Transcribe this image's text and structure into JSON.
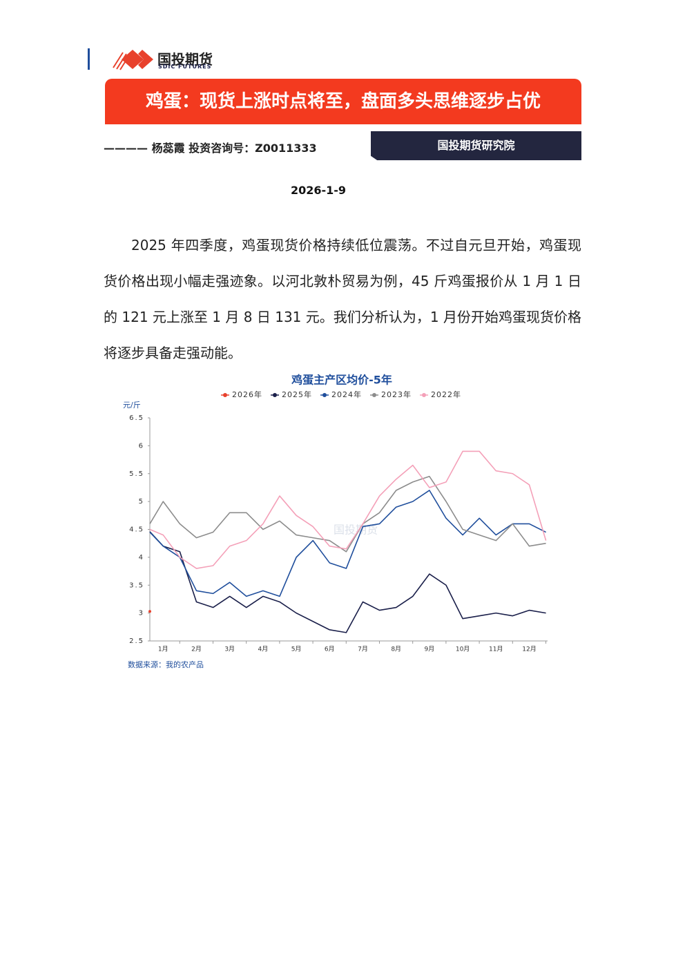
{
  "header": {
    "logo_cn": "国投期货",
    "logo_en": "SDIC FUTURES",
    "title": "鸡蛋：现货上涨时点将至，盘面多头思维逐步占优",
    "author_line": "———— 杨蕊霞 投资咨询号：Z0011333",
    "institute": "国投期货研究院",
    "date": "2026-1-9"
  },
  "body": {
    "paragraph": "2025 年四季度，鸡蛋现货价格持续低位震荡。不过自元旦开始，鸡蛋现货价格出现小幅走强迹象。以河北敦朴贸易为例，45 斤鸡蛋报价从 1 月 1 日的 121 元上涨至 1 月 8 日 131 元。我们分析认为，1 月份开始鸡蛋现货价格将逐步具备走强动能。"
  },
  "chart_data": {
    "type": "line",
    "title": "鸡蛋主产区均价-5年",
    "y_label": "元/斤",
    "source": "数据来源：我的农产品",
    "watermark": "国投期货",
    "x": [
      0.6,
      1,
      1.5,
      2,
      2.5,
      3,
      3.5,
      4,
      4.5,
      5,
      5.5,
      6,
      6.5,
      7,
      7.5,
      8,
      8.5,
      9,
      9.5,
      10,
      10.5,
      11,
      11.5,
      12,
      12.5
    ],
    "xlim": [
      0.6,
      12.55
    ],
    "xticks": [
      {
        "value": 1,
        "label": "1月"
      },
      {
        "value": 2,
        "label": "2月"
      },
      {
        "value": 3,
        "label": "3月"
      },
      {
        "value": 4,
        "label": "4月"
      },
      {
        "value": 5,
        "label": "5月"
      },
      {
        "value": 6,
        "label": "6月"
      },
      {
        "value": 7,
        "label": "7月"
      },
      {
        "value": 8,
        "label": "8月"
      },
      {
        "value": 9,
        "label": "9月"
      },
      {
        "value": 10,
        "label": "10月"
      },
      {
        "value": 11,
        "label": "11月"
      },
      {
        "value": 12,
        "label": "12月"
      }
    ],
    "ylim": [
      2.5,
      6.5
    ],
    "yticks": [
      2.5,
      3,
      3.5,
      4,
      4.5,
      5,
      5.5,
      6,
      6.5
    ],
    "series": [
      {
        "name": "2026年",
        "color": "#e8412c",
        "values": [
          3.03,
          null,
          null,
          null,
          null,
          null,
          null,
          null,
          null,
          null,
          null,
          null,
          null,
          null,
          null,
          null,
          null,
          null,
          null,
          null,
          null,
          null,
          null,
          null,
          null
        ]
      },
      {
        "name": "2025年",
        "color": "#1a1f4a",
        "values": [
          4.46,
          4.2,
          4.1,
          3.2,
          3.1,
          3.3,
          3.1,
          3.3,
          3.2,
          3.0,
          2.85,
          2.7,
          2.65,
          3.2,
          3.05,
          3.1,
          3.3,
          3.7,
          3.5,
          2.9,
          2.95,
          3.0,
          2.95,
          3.05,
          3.0
        ]
      },
      {
        "name": "2024年",
        "color": "#1f4e9c",
        "values": [
          4.45,
          4.2,
          4.0,
          3.4,
          3.35,
          3.55,
          3.3,
          3.4,
          3.3,
          4.0,
          4.3,
          3.9,
          3.8,
          4.55,
          4.6,
          4.9,
          5.0,
          5.2,
          4.7,
          4.4,
          4.7,
          4.4,
          4.6,
          4.6,
          4.45
        ]
      },
      {
        "name": "2023年",
        "color": "#8c8c8c",
        "values": [
          4.6,
          5.0,
          4.6,
          4.35,
          4.45,
          4.8,
          4.8,
          4.5,
          4.65,
          4.4,
          4.35,
          4.3,
          4.1,
          4.6,
          4.8,
          5.2,
          5.35,
          5.45,
          5.0,
          4.5,
          4.4,
          4.3,
          4.6,
          4.2,
          4.25
        ]
      },
      {
        "name": "2022年",
        "color": "#f4a0b8",
        "values": [
          4.5,
          4.4,
          4.0,
          3.8,
          3.85,
          4.2,
          4.3,
          4.6,
          5.1,
          4.75,
          4.55,
          4.2,
          4.15,
          4.6,
          5.1,
          5.4,
          5.65,
          5.25,
          5.35,
          5.9,
          5.9,
          5.55,
          5.5,
          5.3,
          4.3
        ]
      }
    ]
  }
}
